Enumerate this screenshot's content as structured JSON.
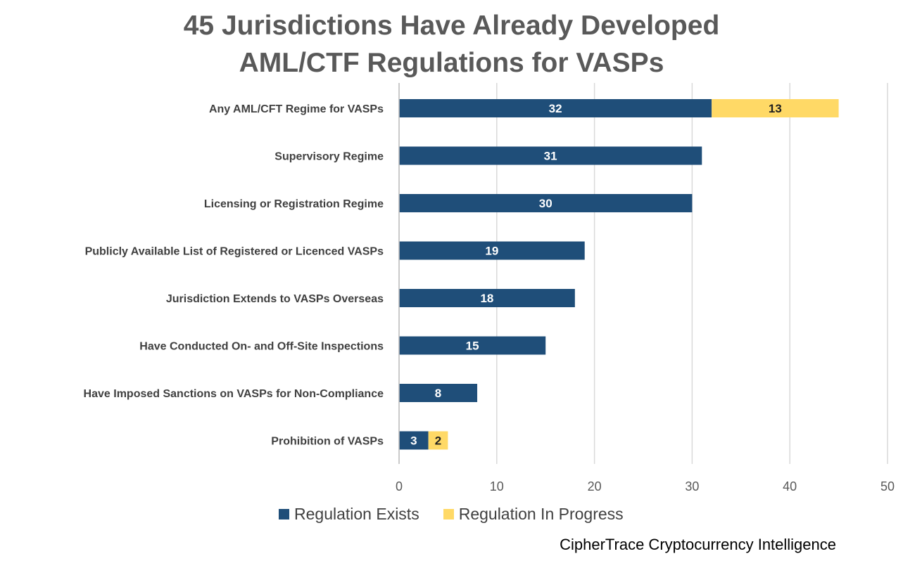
{
  "chart_data": {
    "type": "bar",
    "orientation": "horizontal",
    "stacked": true,
    "title_lines": [
      "45 Jurisdictions Have Already Developed",
      "AML/CTF Regulations for VASPs"
    ],
    "categories": [
      "Any AML/CFT Regime for VASPs",
      "Supervisory Regime",
      "Licensing or Registration Regime",
      "Publicly Available List of Registered or Licenced VASPs",
      "Jurisdiction Extends to VASPs Overseas",
      "Have Conducted On- and Off-Site Inspections",
      "Have Imposed Sanctions on VASPs for Non-Compliance",
      "Prohibition of VASPs"
    ],
    "series": [
      {
        "name": "Regulation Exists",
        "color": "#1f4e79",
        "label_color": "#ffffff",
        "values": [
          32,
          31,
          30,
          19,
          18,
          15,
          8,
          3
        ]
      },
      {
        "name": "Regulation In Progress",
        "color": "#ffd966",
        "label_color": "#1f1f1f",
        "values": [
          13,
          null,
          null,
          null,
          null,
          null,
          null,
          2
        ]
      }
    ],
    "xlim": [
      0,
      50
    ],
    "x_ticks": [
      "0",
      "10",
      "20",
      "30",
      "40",
      "50"
    ],
    "grid": "vertical",
    "legend_position": "bottom"
  },
  "source": "CipherTrace Cryptocurrency Intelligence"
}
